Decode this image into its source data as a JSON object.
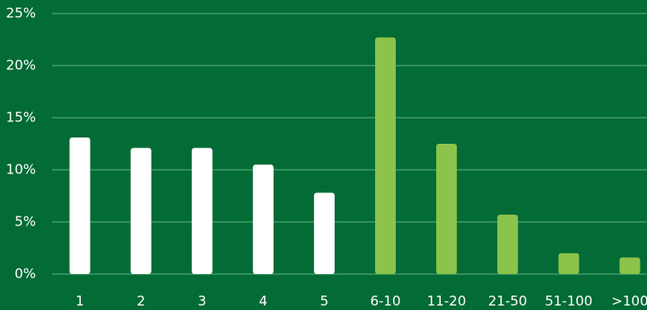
{
  "chart_data": {
    "type": "bar",
    "title": "",
    "xlabel": "",
    "ylabel": "",
    "categories": [
      "1",
      "2",
      "3",
      "4",
      "5",
      "6-10",
      "11-20",
      "21-50",
      "51-100",
      ">100"
    ],
    "values": [
      13.1,
      12.1,
      12.1,
      10.5,
      7.8,
      22.7,
      12.5,
      5.7,
      2.0,
      1.6
    ],
    "ylim": [
      0,
      25
    ],
    "yticks": [
      0,
      5,
      10,
      15,
      20,
      25
    ],
    "ytick_labels": [
      "0%",
      "5%",
      "10%",
      "15%",
      "20%",
      "25%"
    ],
    "grid": true,
    "legend": "none",
    "colors": {
      "background": "#036b35",
      "gridline": "#3f9a63",
      "text": "#ffffff",
      "bars_first_group": "#ffffff",
      "bars_second_group": "#8cc34a"
    },
    "bar_color_index": [
      0,
      0,
      0,
      0,
      0,
      1,
      1,
      1,
      1,
      1
    ]
  }
}
